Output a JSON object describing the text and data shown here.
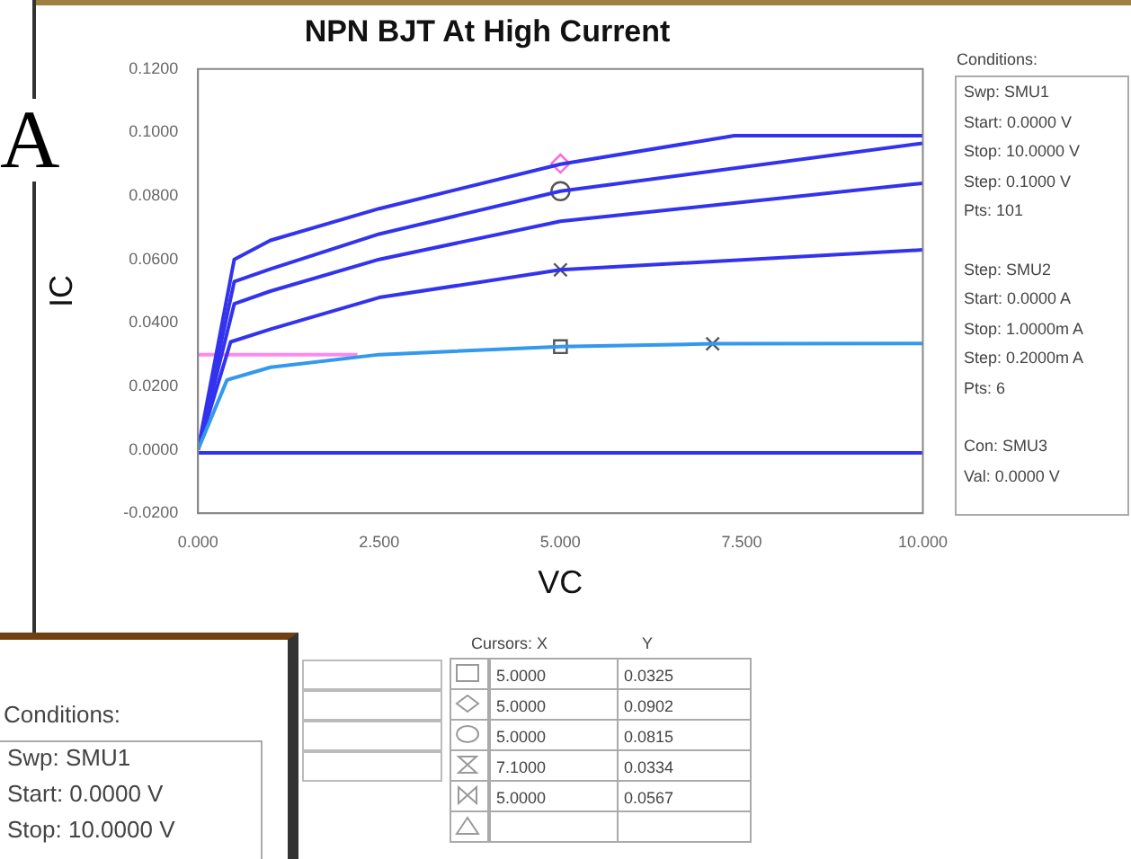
{
  "chart_data": {
    "type": "line",
    "title": "NPN BJT At High Current",
    "xlabel": "VC",
    "ylabel": "IC",
    "xlim": [
      0,
      10
    ],
    "xticks": [
      {
        "value": 0,
        "label": "0.000"
      },
      {
        "value": 2.5,
        "label": "2.500"
      },
      {
        "value": 5,
        "label": "5.000"
      },
      {
        "value": 7.5,
        "label": "7.500"
      },
      {
        "value": 10,
        "label": "10.000"
      }
    ],
    "ylim": [
      -0.02,
      0.12
    ],
    "yticks": [
      {
        "value": -0.02,
        "label": "-0.0200"
      },
      {
        "value": 0,
        "label": "0.0000"
      },
      {
        "value": 0.02,
        "label": "0.0200"
      },
      {
        "value": 0.04,
        "label": "0.0400"
      },
      {
        "value": 0.06,
        "label": "0.0600"
      },
      {
        "value": 0.08,
        "label": "0.0800"
      },
      {
        "value": 0.1,
        "label": "0.1000"
      },
      {
        "value": 0.12,
        "label": "0.1200"
      }
    ],
    "grid": false,
    "legend": false,
    "marker": "none",
    "series": [
      {
        "color": "#3333ee",
        "x": [
          0,
          10
        ],
        "values": [
          -0.001,
          -0.001
        ]
      },
      {
        "color": "#3399ee",
        "x": [
          0,
          0.4,
          1,
          2.5,
          5,
          7.1,
          10
        ],
        "values": [
          0,
          0.022,
          0.026,
          0.03,
          0.0325,
          0.0334,
          0.0335
        ]
      },
      {
        "color": "#3333ee",
        "x": [
          0,
          0.45,
          1,
          2.5,
          5,
          10
        ],
        "values": [
          0,
          0.034,
          0.038,
          0.048,
          0.0567,
          0.063
        ]
      },
      {
        "color": "#3333ee",
        "x": [
          0,
          0.5,
          1,
          2.5,
          5,
          10
        ],
        "values": [
          0,
          0.046,
          0.05,
          0.06,
          0.072,
          0.084
        ]
      },
      {
        "color": "#3333ee",
        "x": [
          0,
          0.5,
          1,
          2.5,
          5,
          10
        ],
        "values": [
          0,
          0.053,
          0.057,
          0.068,
          0.0815,
          0.0966
        ]
      },
      {
        "color": "#3333ee",
        "x": [
          0,
          0.5,
          1,
          2.5,
          5,
          7.4,
          10
        ],
        "values": [
          0,
          0.06,
          0.066,
          0.076,
          0.09,
          0.099,
          0.099
        ]
      },
      {
        "color": "#ff88ee",
        "x": [
          0,
          2.2
        ],
        "values": [
          0.03,
          0.03
        ]
      },
      {
        "type": "scatter",
        "marker": "square",
        "color": "#555555",
        "x": [
          5
        ],
        "values": [
          0.0325
        ]
      },
      {
        "type": "scatter",
        "marker": "diamond",
        "color": "#ff66dd",
        "x": [
          5
        ],
        "values": [
          0.0902
        ]
      },
      {
        "type": "scatter",
        "marker": "circle",
        "color": "#555555",
        "x": [
          5
        ],
        "values": [
          0.0815
        ]
      },
      {
        "type": "scatter",
        "marker": "cross",
        "color": "#555555",
        "x": [
          7.1
        ],
        "values": [
          0.0334
        ]
      },
      {
        "type": "scatter",
        "marker": "cross",
        "color": "#555555",
        "x": [
          5
        ],
        "values": [
          0.0567
        ]
      }
    ],
    "annotations": [
      "A",
      "Conditions:",
      "Swp: SMU1",
      "Start: 0.0000 V",
      "Stop: 10.0000 V",
      "Step: 0.1000 V",
      "Pts: 101",
      "Step: SMU2",
      "Start: 0.0000 A",
      "Stop: 1.0000m A",
      "Step: 0.2000m A",
      "Pts: 6",
      "Con: SMU3",
      "Val: 0.0000 V",
      "Cursors: X",
      "Y",
      "5.0000",
      "0.0325",
      "5.0000",
      "0.0902",
      "5.0000",
      "0.0815",
      "7.1000",
      "0.0334",
      "5.0000",
      "0.0567",
      "Conditions:",
      "Swp: SMU1",
      "Start: 0.0000 V",
      "Stop: 10.0000 V"
    ]
  }
}
